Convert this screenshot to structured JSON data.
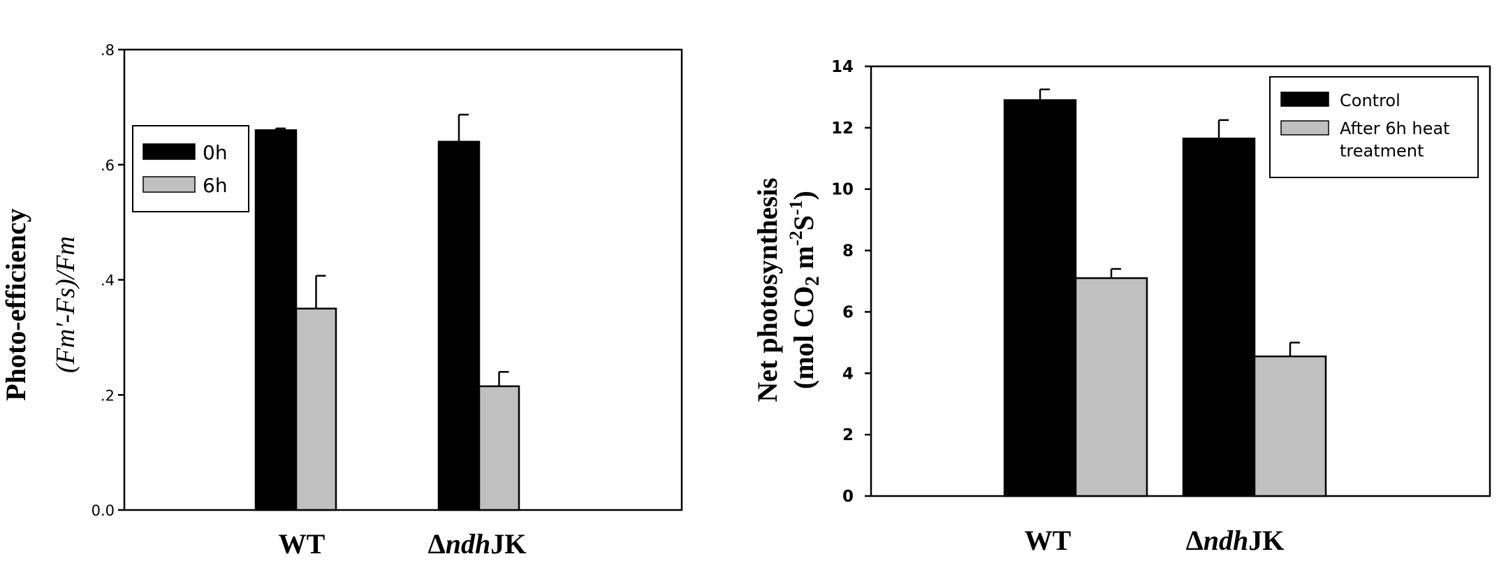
{
  "chart_data": [
    {
      "type": "bar",
      "panel": "left",
      "categories": [
        "WT",
        "ΔndhJK"
      ],
      "category_parts": [
        {
          "prefix": "",
          "italic": "",
          "suffix": "WT"
        },
        {
          "prefix": "Δ",
          "italic": "ndh",
          "suffix": "JK"
        }
      ],
      "series": [
        {
          "name": "0h",
          "values": [
            0.66,
            0.64
          ],
          "errors": [
            0.003,
            0.047
          ],
          "color": "#000000"
        },
        {
          "name": "6h",
          "values": [
            0.35,
            0.215
          ],
          "errors": [
            0.057,
            0.025
          ],
          "color": "#c0c0c0"
        }
      ],
      "ylabel_line1": "Photo-efficiency",
      "ylabel_line2": "(Fm'-Fs)/Fm",
      "ylim": [
        0,
        0.8
      ],
      "yticks": [
        {
          "value": 0,
          "label": "0.0"
        },
        {
          "value": 0.2,
          "label": ".2"
        },
        {
          "value": 0.4,
          "label": ".4"
        },
        {
          "value": 0.6,
          "label": ".6"
        },
        {
          "value": 0.8,
          "label": ".8"
        }
      ],
      "legend": [
        "0h",
        "6h"
      ],
      "legend_position": "upper-left",
      "grid": false
    },
    {
      "type": "bar",
      "panel": "right",
      "categories": [
        "WT",
        "ΔndhJK"
      ],
      "category_parts": [
        {
          "prefix": "",
          "italic": "",
          "suffix": "WT"
        },
        {
          "prefix": "Δ",
          "italic": "ndh",
          "suffix": "JK"
        }
      ],
      "series": [
        {
          "name": "Control",
          "values": [
            12.9,
            11.65
          ],
          "errors": [
            0.35,
            0.6
          ],
          "color": "#000000"
        },
        {
          "name": "After 6h heat treatment",
          "values": [
            7.1,
            4.55
          ],
          "errors": [
            0.3,
            0.45
          ],
          "color": "#c0c0c0"
        }
      ],
      "ylabel_line1": "Net photosynthesis",
      "ylabel_line2": "(mol CO2 m-2S-1)",
      "ylim": [
        0,
        14
      ],
      "yticks": [
        {
          "value": 0,
          "label": "0"
        },
        {
          "value": 2,
          "label": "2"
        },
        {
          "value": 4,
          "label": "4"
        },
        {
          "value": 6,
          "label": "6"
        },
        {
          "value": 8,
          "label": "8"
        },
        {
          "value": 10,
          "label": "10"
        },
        {
          "value": 12,
          "label": "12"
        },
        {
          "value": 14,
          "label": "14"
        }
      ],
      "legend": [
        "Control",
        "After 6h heat",
        "treatment"
      ],
      "legend_position": "upper-right",
      "grid": false
    }
  ]
}
